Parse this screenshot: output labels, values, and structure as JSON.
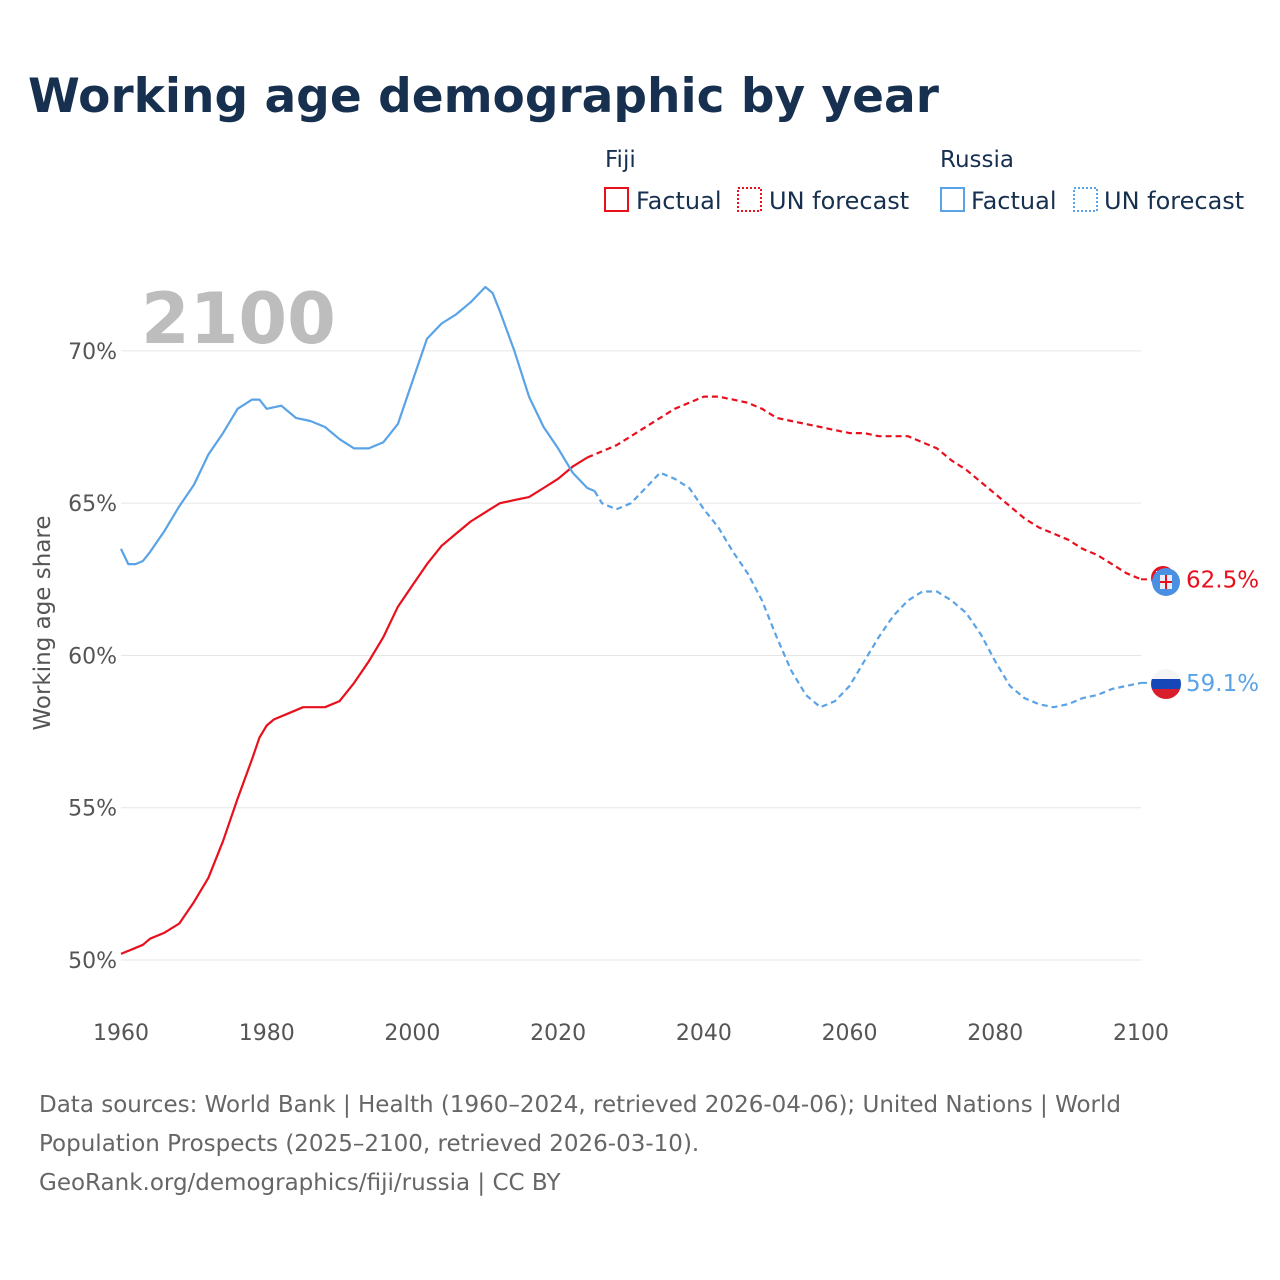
{
  "title": "Working age demographic by year",
  "year_label": "2100",
  "colors": {
    "fiji": "#e8101c",
    "russia": "#5aa3e6",
    "title": "#17304f",
    "grid": "#e6e6e6",
    "tick": "#555555",
    "year": "#bdbdbd"
  },
  "legend": [
    {
      "group": "Fiji",
      "factual_label": "Factual",
      "forecast_label": "UN forecast",
      "color": "#e8101c"
    },
    {
      "group": "Russia",
      "factual_label": "Factual",
      "forecast_label": "UN forecast",
      "color": "#5aa3e6"
    }
  ],
  "end_labels": {
    "fiji": "62.5%",
    "russia": "59.1%"
  },
  "flags": {
    "fiji": "fiji-flag-icon",
    "russia": "russia-flag-icon"
  },
  "source": {
    "line1": "Data sources: World Bank | Health (1960–2024, retrieved 2026-04-06); United Nations | World",
    "line2": "Population Prospects (2025–2100, retrieved 2026-03-10).",
    "line3": "GeoRank.org/demographics/fiji/russia | CC BY"
  },
  "chart_data": {
    "type": "line",
    "title": "Working age demographic by year",
    "xlabel": "",
    "ylabel": "Working age share",
    "xlim": [
      1960,
      2100
    ],
    "ylim": [
      50,
      72
    ],
    "x_ticks": [
      1960,
      1980,
      2000,
      2020,
      2040,
      2060,
      2080,
      2100
    ],
    "y_ticks": [
      50,
      55,
      60,
      65,
      70
    ],
    "y_tick_labels": [
      "50%",
      "55%",
      "60%",
      "65%",
      "70%"
    ],
    "grid": true,
    "legend_position": "top-right",
    "series": [
      {
        "name": "Fiji",
        "kind": "factual",
        "points": [
          [
            1960,
            50.2
          ],
          [
            1963,
            50.5
          ],
          [
            1964,
            50.7
          ],
          [
            1966,
            50.9
          ],
          [
            1968,
            51.2
          ],
          [
            1970,
            51.9
          ],
          [
            1972,
            52.7
          ],
          [
            1974,
            53.9
          ],
          [
            1976,
            55.3
          ],
          [
            1978,
            56.6
          ],
          [
            1979,
            57.3
          ],
          [
            1980,
            57.7
          ],
          [
            1981,
            57.9
          ],
          [
            1983,
            58.1
          ],
          [
            1985,
            58.3
          ],
          [
            1988,
            58.3
          ],
          [
            1990,
            58.5
          ],
          [
            1992,
            59.1
          ],
          [
            1994,
            59.8
          ],
          [
            1996,
            60.6
          ],
          [
            1998,
            61.6
          ],
          [
            2000,
            62.3
          ],
          [
            2002,
            63.0
          ],
          [
            2004,
            63.6
          ],
          [
            2006,
            64.0
          ],
          [
            2008,
            64.4
          ],
          [
            2010,
            64.7
          ],
          [
            2012,
            65.0
          ],
          [
            2014,
            65.1
          ],
          [
            2016,
            65.2
          ],
          [
            2018,
            65.5
          ],
          [
            2020,
            65.8
          ],
          [
            2022,
            66.2
          ],
          [
            2024,
            66.5
          ]
        ]
      },
      {
        "name": "Fiji",
        "kind": "forecast",
        "points": [
          [
            2024,
            66.5
          ],
          [
            2026,
            66.7
          ],
          [
            2028,
            66.9
          ],
          [
            2030,
            67.2
          ],
          [
            2032,
            67.5
          ],
          [
            2034,
            67.8
          ],
          [
            2036,
            68.1
          ],
          [
            2038,
            68.3
          ],
          [
            2040,
            68.5
          ],
          [
            2042,
            68.5
          ],
          [
            2044,
            68.4
          ],
          [
            2046,
            68.3
          ],
          [
            2048,
            68.1
          ],
          [
            2050,
            67.8
          ],
          [
            2052,
            67.7
          ],
          [
            2054,
            67.6
          ],
          [
            2056,
            67.5
          ],
          [
            2058,
            67.4
          ],
          [
            2060,
            67.3
          ],
          [
            2062,
            67.3
          ],
          [
            2064,
            67.2
          ],
          [
            2066,
            67.2
          ],
          [
            2068,
            67.2
          ],
          [
            2070,
            67.0
          ],
          [
            2072,
            66.8
          ],
          [
            2074,
            66.4
          ],
          [
            2076,
            66.1
          ],
          [
            2078,
            65.7
          ],
          [
            2080,
            65.3
          ],
          [
            2082,
            64.9
          ],
          [
            2084,
            64.5
          ],
          [
            2086,
            64.2
          ],
          [
            2088,
            64.0
          ],
          [
            2090,
            63.8
          ],
          [
            2092,
            63.5
          ],
          [
            2094,
            63.3
          ],
          [
            2096,
            63.0
          ],
          [
            2098,
            62.7
          ],
          [
            2100,
            62.5
          ]
        ]
      },
      {
        "name": "Russia",
        "kind": "factual",
        "points": [
          [
            1960,
            63.5
          ],
          [
            1961,
            63.0
          ],
          [
            1962,
            63.0
          ],
          [
            1963,
            63.1
          ],
          [
            1964,
            63.4
          ],
          [
            1966,
            64.1
          ],
          [
            1968,
            64.9
          ],
          [
            1970,
            65.6
          ],
          [
            1972,
            66.6
          ],
          [
            1974,
            67.3
          ],
          [
            1976,
            68.1
          ],
          [
            1978,
            68.4
          ],
          [
            1979,
            68.4
          ],
          [
            1980,
            68.1
          ],
          [
            1982,
            68.2
          ],
          [
            1984,
            67.8
          ],
          [
            1986,
            67.7
          ],
          [
            1988,
            67.5
          ],
          [
            1990,
            67.1
          ],
          [
            1992,
            66.8
          ],
          [
            1994,
            66.8
          ],
          [
            1996,
            67.0
          ],
          [
            1998,
            67.6
          ],
          [
            2000,
            69.0
          ],
          [
            2002,
            70.4
          ],
          [
            2004,
            70.9
          ],
          [
            2006,
            71.2
          ],
          [
            2008,
            71.6
          ],
          [
            2010,
            72.1
          ],
          [
            2011,
            71.9
          ],
          [
            2012,
            71.3
          ],
          [
            2014,
            70.0
          ],
          [
            2016,
            68.5
          ],
          [
            2018,
            67.5
          ],
          [
            2020,
            66.8
          ],
          [
            2022,
            66.0
          ],
          [
            2024,
            65.5
          ],
          [
            2025,
            65.4
          ]
        ]
      },
      {
        "name": "Russia",
        "kind": "forecast",
        "points": [
          [
            2025,
            65.4
          ],
          [
            2026,
            65.0
          ],
          [
            2028,
            64.8
          ],
          [
            2030,
            65.0
          ],
          [
            2032,
            65.5
          ],
          [
            2034,
            66.0
          ],
          [
            2036,
            65.8
          ],
          [
            2038,
            65.5
          ],
          [
            2040,
            64.8
          ],
          [
            2042,
            64.2
          ],
          [
            2044,
            63.4
          ],
          [
            2046,
            62.7
          ],
          [
            2048,
            61.8
          ],
          [
            2050,
            60.6
          ],
          [
            2052,
            59.5
          ],
          [
            2054,
            58.7
          ],
          [
            2056,
            58.3
          ],
          [
            2058,
            58.5
          ],
          [
            2060,
            59.0
          ],
          [
            2062,
            59.8
          ],
          [
            2064,
            60.6
          ],
          [
            2066,
            61.3
          ],
          [
            2068,
            61.8
          ],
          [
            2070,
            62.1
          ],
          [
            2072,
            62.1
          ],
          [
            2074,
            61.8
          ],
          [
            2076,
            61.4
          ],
          [
            2078,
            60.7
          ],
          [
            2080,
            59.8
          ],
          [
            2082,
            59.0
          ],
          [
            2084,
            58.6
          ],
          [
            2086,
            58.4
          ],
          [
            2088,
            58.3
          ],
          [
            2090,
            58.4
          ],
          [
            2092,
            58.6
          ],
          [
            2094,
            58.7
          ],
          [
            2096,
            58.9
          ],
          [
            2098,
            59.0
          ],
          [
            2100,
            59.1
          ]
        ]
      }
    ]
  }
}
